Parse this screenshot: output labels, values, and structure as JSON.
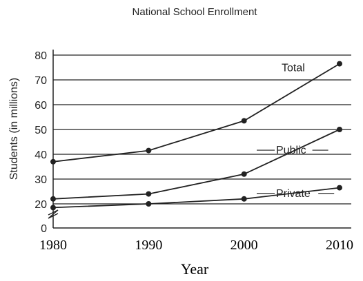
{
  "chart_data": {
    "type": "line",
    "title": "National School Enrollment",
    "xlabel": "Year",
    "ylabel": "Students (in millions)",
    "x": [
      1980,
      1990,
      2000,
      2010
    ],
    "xticks": [
      "1980",
      "1990",
      "2000",
      "2010"
    ],
    "yticks": [
      "0",
      "20",
      "30",
      "40",
      "50",
      "60",
      "70",
      "80"
    ],
    "ylim": [
      0,
      80
    ],
    "y_axis_break": true,
    "grid": "horizontal",
    "series": [
      {
        "name": "Total",
        "values": [
          37,
          41.5,
          53.5,
          76.5
        ]
      },
      {
        "name": "Public",
        "values": [
          22,
          24,
          32,
          50
        ]
      },
      {
        "name": "Private",
        "values": [
          18.5,
          20,
          22,
          26.5
        ]
      }
    ]
  }
}
